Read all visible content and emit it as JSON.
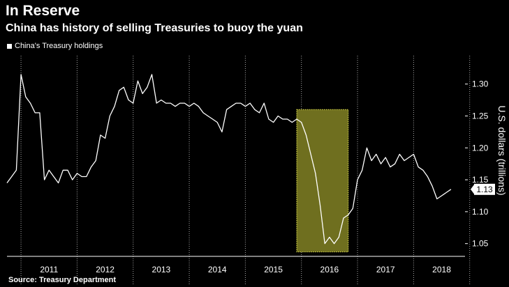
{
  "header": {
    "title": "In Reserve",
    "subtitle": "China has history of selling Treasuries to buoy the yuan"
  },
  "legend": {
    "label": "China's Treasury holdings"
  },
  "source": "Source: Treasury Department",
  "colors": {
    "background": "#000000",
    "line": "#ffffff",
    "highlight_fill": "#6f6f1f",
    "highlight_border": "#d8d84a",
    "grid": "#aaaaaa"
  },
  "chart_data": {
    "type": "line",
    "title": "In Reserve",
    "subtitle": "China has history of selling Treasuries to buoy the yuan",
    "ylabel": "U.S. dollars (trillions)",
    "ylim": [
      1.03,
      1.34
    ],
    "yticks": [
      1.05,
      1.1,
      1.15,
      1.2,
      1.25,
      1.3
    ],
    "ytick_labels": [
      "1.05",
      "1.10",
      "1.15",
      "1.20",
      "1.25",
      "1.30"
    ],
    "xlim": [
      "2010-10",
      "2018-12"
    ],
    "year_labels": [
      "2011",
      "2012",
      "2013",
      "2014",
      "2015",
      "2016",
      "2017",
      "2018"
    ],
    "grid": "vertical dotted at year boundaries",
    "legend_position": "top-left",
    "last_value_label": "1.13",
    "highlight": {
      "x_start": "2015-12",
      "x_end": "2016-11",
      "y_bottom": 1.037,
      "y_top": 1.26
    },
    "series": [
      {
        "name": "China's Treasury holdings",
        "points": [
          [
            "2010-10",
            1.145
          ],
          [
            "2010-11",
            1.155
          ],
          [
            "2010-12",
            1.165
          ],
          [
            "2011-01",
            1.315
          ],
          [
            "2011-02",
            1.28
          ],
          [
            "2011-03",
            1.27
          ],
          [
            "2011-04",
            1.255
          ],
          [
            "2011-05",
            1.255
          ],
          [
            "2011-06",
            1.15
          ],
          [
            "2011-07",
            1.165
          ],
          [
            "2011-08",
            1.155
          ],
          [
            "2011-09",
            1.145
          ],
          [
            "2011-10",
            1.165
          ],
          [
            "2011-11",
            1.165
          ],
          [
            "2011-12",
            1.15
          ],
          [
            "2012-01",
            1.16
          ],
          [
            "2012-02",
            1.155
          ],
          [
            "2012-03",
            1.155
          ],
          [
            "2012-04",
            1.17
          ],
          [
            "2012-05",
            1.18
          ],
          [
            "2012-06",
            1.22
          ],
          [
            "2012-07",
            1.215
          ],
          [
            "2012-08",
            1.25
          ],
          [
            "2012-09",
            1.265
          ],
          [
            "2012-10",
            1.29
          ],
          [
            "2012-11",
            1.295
          ],
          [
            "2012-12",
            1.275
          ],
          [
            "2013-01",
            1.27
          ],
          [
            "2013-02",
            1.305
          ],
          [
            "2013-03",
            1.285
          ],
          [
            "2013-04",
            1.295
          ],
          [
            "2013-05",
            1.315
          ],
          [
            "2013-06",
            1.27
          ],
          [
            "2013-07",
            1.275
          ],
          [
            "2013-08",
            1.27
          ],
          [
            "2013-09",
            1.27
          ],
          [
            "2013-10",
            1.265
          ],
          [
            "2013-11",
            1.27
          ],
          [
            "2013-12",
            1.27
          ],
          [
            "2014-01",
            1.265
          ],
          [
            "2014-02",
            1.27
          ],
          [
            "2014-03",
            1.265
          ],
          [
            "2014-04",
            1.255
          ],
          [
            "2014-05",
            1.25
          ],
          [
            "2014-06",
            1.245
          ],
          [
            "2014-07",
            1.24
          ],
          [
            "2014-08",
            1.225
          ],
          [
            "2014-09",
            1.26
          ],
          [
            "2014-10",
            1.265
          ],
          [
            "2014-11",
            1.27
          ],
          [
            "2014-12",
            1.27
          ],
          [
            "2015-01",
            1.265
          ],
          [
            "2015-02",
            1.27
          ],
          [
            "2015-03",
            1.26
          ],
          [
            "2015-04",
            1.255
          ],
          [
            "2015-05",
            1.27
          ],
          [
            "2015-06",
            1.245
          ],
          [
            "2015-07",
            1.24
          ],
          [
            "2015-08",
            1.25
          ],
          [
            "2015-09",
            1.245
          ],
          [
            "2015-10",
            1.245
          ],
          [
            "2015-11",
            1.24
          ],
          [
            "2015-12",
            1.245
          ],
          [
            "2016-01",
            1.24
          ],
          [
            "2016-02",
            1.22
          ],
          [
            "2016-03",
            1.19
          ],
          [
            "2016-04",
            1.16
          ],
          [
            "2016-05",
            1.11
          ],
          [
            "2016-06",
            1.05
          ],
          [
            "2016-07",
            1.06
          ],
          [
            "2016-08",
            1.05
          ],
          [
            "2016-09",
            1.06
          ],
          [
            "2016-10",
            1.09
          ],
          [
            "2016-11",
            1.095
          ],
          [
            "2016-12",
            1.105
          ],
          [
            "2017-01",
            1.15
          ],
          [
            "2017-02",
            1.165
          ],
          [
            "2017-03",
            1.2
          ],
          [
            "2017-04",
            1.18
          ],
          [
            "2017-05",
            1.19
          ],
          [
            "2017-06",
            1.175
          ],
          [
            "2017-07",
            1.185
          ],
          [
            "2017-08",
            1.17
          ],
          [
            "2017-09",
            1.175
          ],
          [
            "2017-10",
            1.19
          ],
          [
            "2017-11",
            1.18
          ],
          [
            "2017-12",
            1.185
          ],
          [
            "2018-01",
            1.19
          ],
          [
            "2018-02",
            1.17
          ],
          [
            "2018-03",
            1.165
          ],
          [
            "2018-04",
            1.155
          ],
          [
            "2018-05",
            1.14
          ],
          [
            "2018-06",
            1.12
          ],
          [
            "2018-07",
            1.125
          ],
          [
            "2018-08",
            1.13
          ],
          [
            "2018-09",
            1.135
          ]
        ]
      }
    ]
  }
}
